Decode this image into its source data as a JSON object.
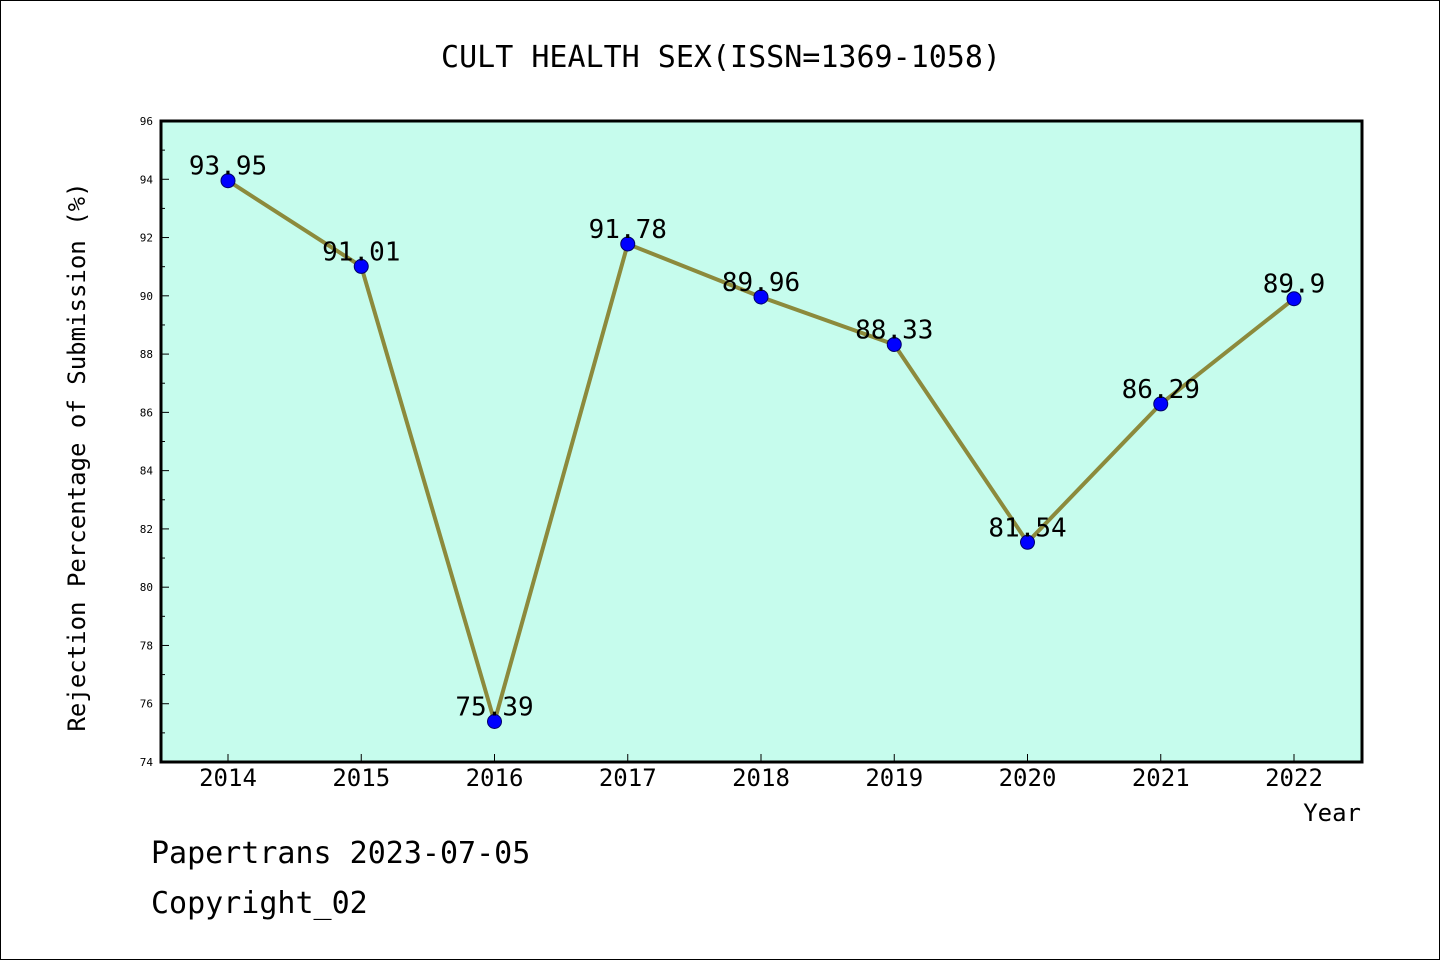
{
  "chart_data": {
    "type": "line",
    "title": "CULT HEALTH SEX(ISSN=1369-1058)",
    "xlabel": "Year",
    "ylabel": "Rejection Percentage of Submission (%)",
    "categories": [
      "2014",
      "2015",
      "2016",
      "2017",
      "2018",
      "2019",
      "2020",
      "2021",
      "2022"
    ],
    "series": [
      {
        "values": [
          93.95,
          91.01,
          75.39,
          91.78,
          89.96,
          88.33,
          81.54,
          86.29,
          89.9
        ],
        "labels": [
          "93.95",
          "91.01",
          "75.39",
          "91.78",
          "89.96",
          "88.33",
          "81.54",
          "86.29",
          "89.9"
        ]
      }
    ],
    "ylim": [
      74,
      96
    ],
    "yticks": [
      74,
      76,
      78,
      80,
      82,
      84,
      86,
      88,
      90,
      92,
      94,
      96
    ],
    "grid": false,
    "colors": {
      "plot_background": "#c6fced",
      "line": "#8c8a3c",
      "marker": "#0000ff"
    }
  },
  "footer": {
    "line1": "Papertrans 2023-07-05",
    "line2": "Copyright_02"
  }
}
